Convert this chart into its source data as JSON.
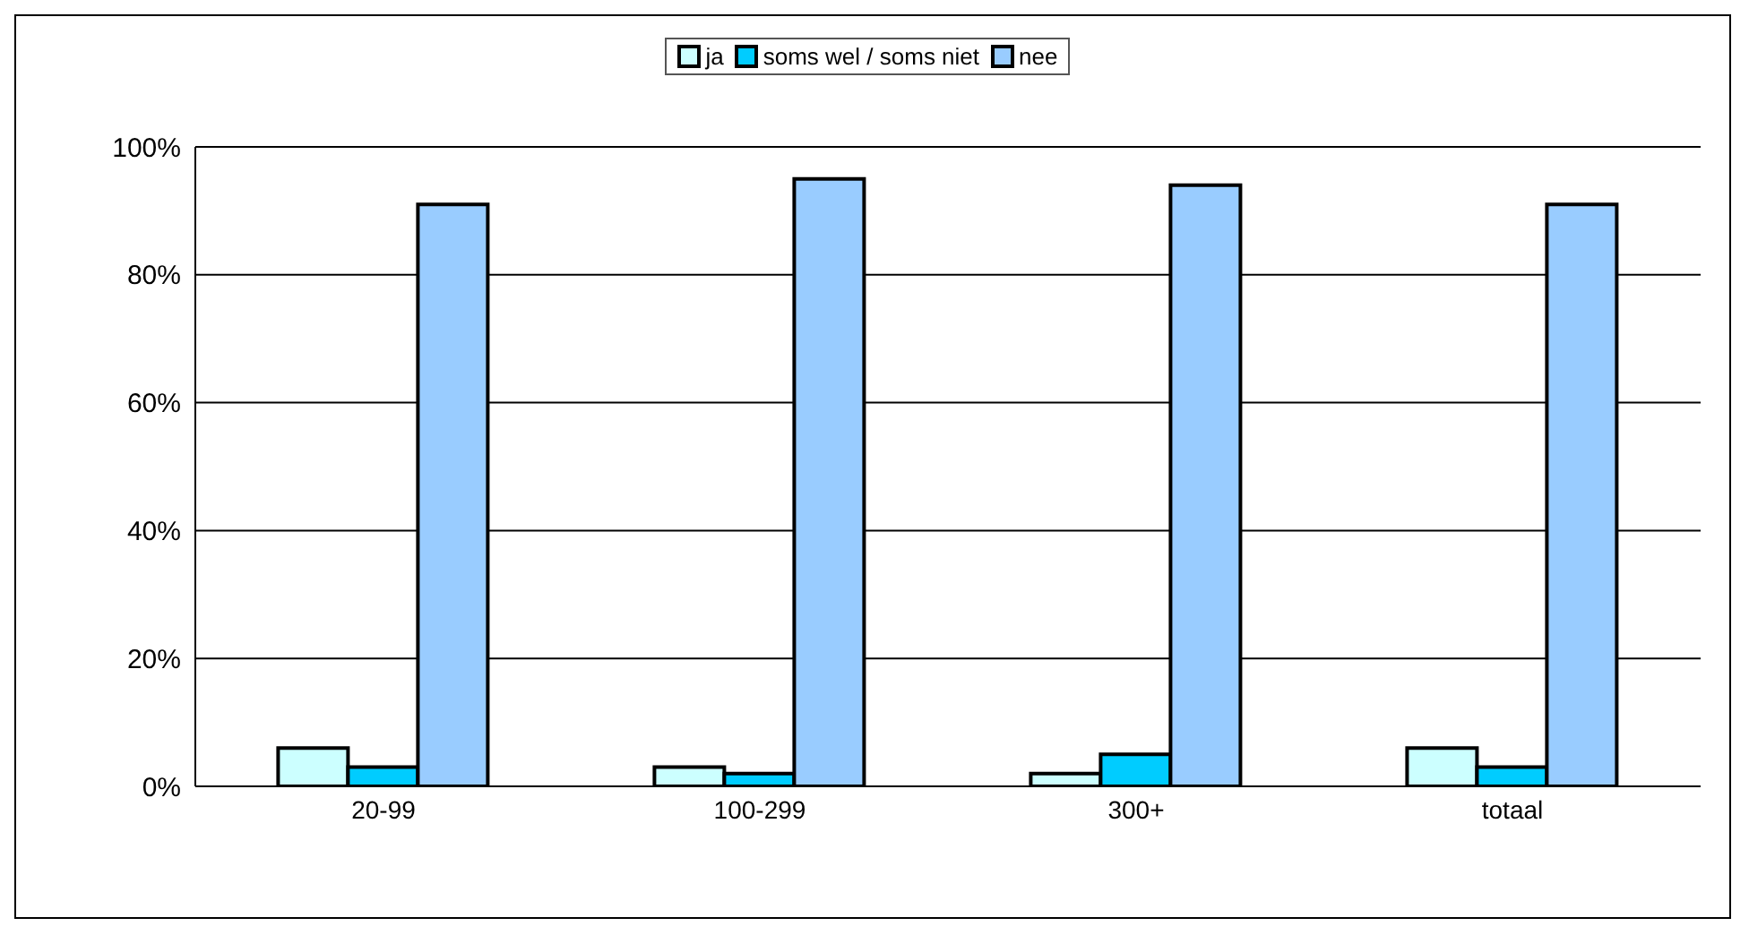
{
  "chart_data": {
    "type": "bar",
    "categories": [
      "20-99",
      "100-299",
      "300+",
      "totaal"
    ],
    "series": [
      {
        "name": "ja",
        "color": "#ccffff",
        "values": [
          6,
          3,
          2,
          6
        ]
      },
      {
        "name": "soms wel / soms niet",
        "color": "#00ccff",
        "values": [
          3,
          2,
          5,
          3
        ]
      },
      {
        "name": "nee",
        "color": "#99ccff",
        "values": [
          91,
          95,
          94,
          91
        ]
      }
    ],
    "ylim": [
      0,
      100
    ],
    "yticks": [
      {
        "value": 0,
        "label": "0%"
      },
      {
        "value": 20,
        "label": "20%"
      },
      {
        "value": 40,
        "label": "40%"
      },
      {
        "value": 60,
        "label": "60%"
      },
      {
        "value": 80,
        "label": "80%"
      },
      {
        "value": 100,
        "label": "100%"
      }
    ],
    "grid": "y",
    "legend": "top"
  }
}
